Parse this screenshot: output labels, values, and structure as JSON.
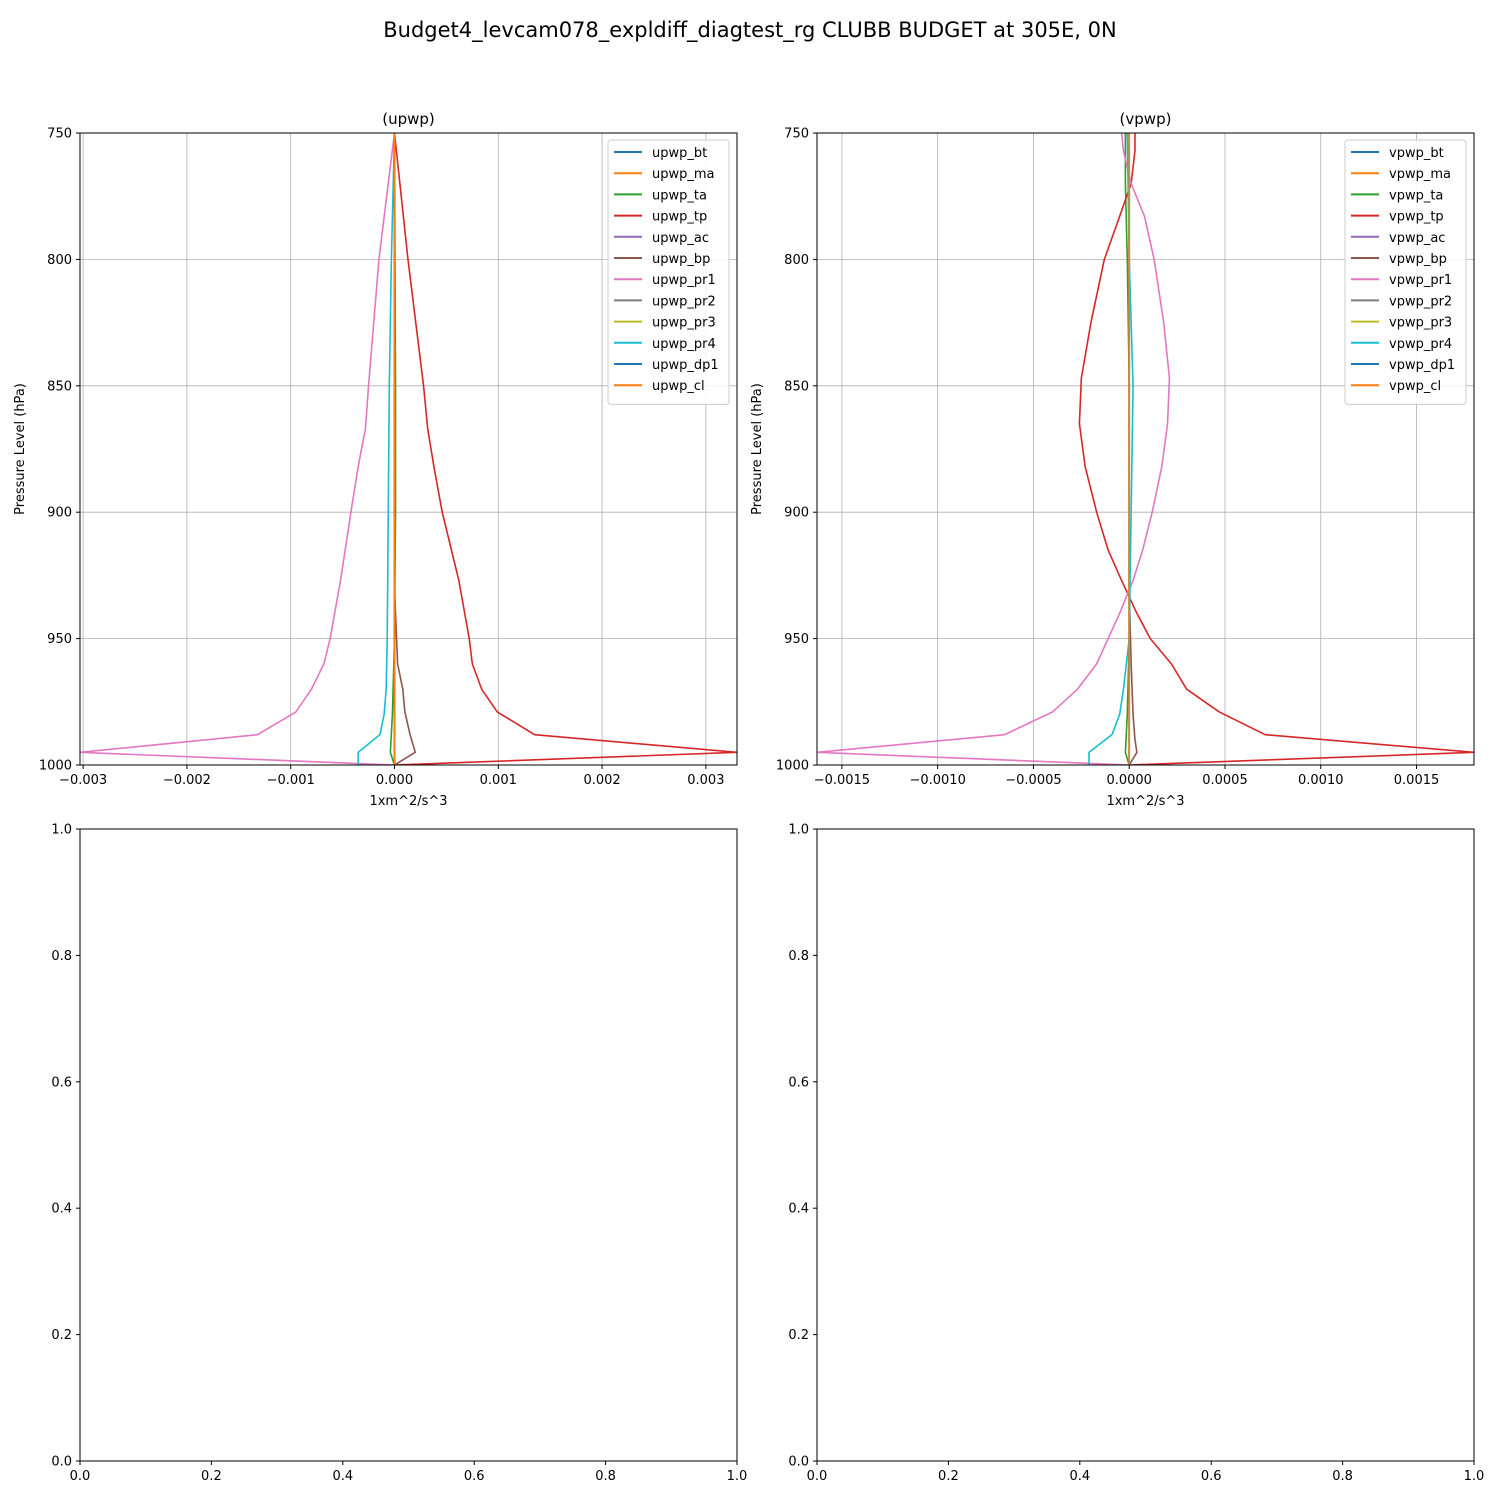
{
  "figure": {
    "suptitle": "Budget4_levcam078_expldiff_diagtest_rg CLUBB BUDGET at 305E, 0N"
  },
  "colors": {
    "tab": [
      "#1f77b4",
      "#ff7f0e",
      "#2ca02c",
      "#d62728",
      "#9467bd",
      "#8c564b",
      "#e377c2",
      "#7f7f7f",
      "#bcbd22",
      "#17becf",
      "#1f77b4",
      "#ff7f0e"
    ]
  },
  "chart_data": [
    {
      "type": "line",
      "title": "(upwp)",
      "xlabel": "1xm^2/s^3",
      "ylabel": "Pressure Level (hPa)",
      "xlim": [
        -0.00303,
        0.0033
      ],
      "ylim": [
        1000,
        750
      ],
      "xticks": [
        -0.003,
        -0.002,
        -0.001,
        0.0,
        0.001,
        0.002,
        0.003
      ],
      "xtick_labels": [
        "−0.003",
        "−0.002",
        "−0.001",
        "0.000",
        "0.001",
        "0.002",
        "0.003"
      ],
      "yticks": [
        750,
        800,
        850,
        900,
        950,
        1000
      ],
      "ytick_labels": [
        "750",
        "800",
        "850",
        "900",
        "950",
        "1000"
      ],
      "grid": true,
      "legend_position": "top-right",
      "series": [
        {
          "name": "upwp_bt",
          "color": "#1f77b4",
          "points": [
            [
              0,
              750
            ],
            [
              0,
              1000
            ]
          ]
        },
        {
          "name": "upwp_ma",
          "color": "#ff7f0e",
          "points": [
            [
              0,
              750
            ],
            [
              0,
              1000
            ]
          ]
        },
        {
          "name": "upwp_ta",
          "color": "#2ca02c",
          "points": [
            [
              0,
              750
            ],
            [
              1e-05,
              850
            ],
            [
              1e-05,
              900
            ],
            [
              0,
              950
            ],
            [
              -2e-05,
              980
            ],
            [
              -4e-05,
              995
            ],
            [
              0,
              1000
            ]
          ]
        },
        {
          "name": "upwp_tp",
          "color": "#d62728",
          "points": [
            [
              0,
              750
            ],
            [
              0.00013,
              800
            ],
            [
              0.00028,
              850
            ],
            [
              0.00032,
              867
            ],
            [
              0.00038,
              882
            ],
            [
              0.00046,
              900
            ],
            [
              0.00062,
              927
            ],
            [
              0.00072,
              950
            ],
            [
              0.00075,
              960
            ],
            [
              0.00084,
              970
            ],
            [
              0.00099,
              979
            ],
            [
              0.00135,
              988
            ],
            [
              0.0033,
              995
            ],
            [
              0,
              1000
            ]
          ]
        },
        {
          "name": "upwp_ac",
          "color": "#9467bd",
          "points": [
            [
              0,
              750
            ],
            [
              0,
              1000
            ]
          ]
        },
        {
          "name": "upwp_bp",
          "color": "#8c564b",
          "points": [
            [
              0,
              750
            ],
            [
              0,
              930
            ],
            [
              3e-05,
              960
            ],
            [
              8e-05,
              970
            ],
            [
              0.0001,
              979
            ],
            [
              0.00015,
              988
            ],
            [
              0.0002,
              995
            ],
            [
              0,
              1000
            ]
          ]
        },
        {
          "name": "upwp_pr1",
          "color": "#e377c2",
          "points": [
            [
              0,
              750
            ],
            [
              -0.00015,
              800
            ],
            [
              -0.00025,
              850
            ],
            [
              -0.00028,
              867
            ],
            [
              -0.00035,
              882
            ],
            [
              -0.00042,
              900
            ],
            [
              -0.00052,
              927
            ],
            [
              -0.00062,
              950
            ],
            [
              -0.00068,
              960
            ],
            [
              -0.0008,
              970
            ],
            [
              -0.00095,
              979
            ],
            [
              -0.00132,
              988
            ],
            [
              -0.00303,
              995
            ],
            [
              0,
              1000
            ]
          ]
        },
        {
          "name": "upwp_pr2",
          "color": "#7f7f7f",
          "points": [
            [
              0,
              750
            ],
            [
              0,
              1000
            ]
          ]
        },
        {
          "name": "upwp_pr3",
          "color": "#bcbd22",
          "points": [
            [
              0,
              750
            ],
            [
              0,
              1000
            ]
          ]
        },
        {
          "name": "upwp_pr4",
          "color": "#17becf",
          "points": [
            [
              0,
              750
            ],
            [
              -3e-05,
              800
            ],
            [
              -5e-05,
              850
            ],
            [
              -6e-05,
              900
            ],
            [
              -7e-05,
              950
            ],
            [
              -8e-05,
              970
            ],
            [
              -0.0001,
              980
            ],
            [
              -0.00014,
              988
            ],
            [
              -0.00035,
              995
            ],
            [
              -0.00035,
              1000
            ]
          ]
        },
        {
          "name": "upwp_dp1",
          "color": "#1f77b4",
          "points": [
            [
              0,
              750
            ],
            [
              0,
              1000
            ]
          ]
        },
        {
          "name": "upwp_cl",
          "color": "#ff7f0e",
          "points": [
            [
              0,
              750
            ],
            [
              0,
              1000
            ]
          ]
        }
      ]
    },
    {
      "type": "line",
      "title": "(vpwp)",
      "xlabel": "1xm^2/s^3",
      "ylabel": "Pressure Level (hPa)",
      "xlim": [
        -0.00163,
        0.0018
      ],
      "ylim": [
        1000,
        750
      ],
      "xticks": [
        -0.0015,
        -0.001,
        -0.0005,
        0.0,
        0.0005,
        0.001,
        0.0015
      ],
      "xtick_labels": [
        "−0.0015",
        "−0.0010",
        "−0.0005",
        "0.0000",
        "0.0005",
        "0.0010",
        "0.0015"
      ],
      "yticks": [
        750,
        800,
        850,
        900,
        950,
        1000
      ],
      "ytick_labels": [
        "750",
        "800",
        "850",
        "900",
        "950",
        "1000"
      ],
      "grid": true,
      "legend_position": "top-right",
      "series": [
        {
          "name": "vpwp_bt",
          "color": "#1f77b4",
          "points": [
            [
              0,
              750
            ],
            [
              0,
              1000
            ]
          ]
        },
        {
          "name": "vpwp_ma",
          "color": "#ff7f0e",
          "points": [
            [
              0,
              750
            ],
            [
              0,
              1000
            ]
          ]
        },
        {
          "name": "vpwp_ta",
          "color": "#2ca02c",
          "points": [
            [
              -2e-05,
              750
            ],
            [
              -2e-05,
              770
            ],
            [
              -1e-05,
              800
            ],
            [
              0,
              850
            ],
            [
              0,
              950
            ],
            [
              -1e-05,
              980
            ],
            [
              -2e-05,
              995
            ],
            [
              0,
              1000
            ]
          ]
        },
        {
          "name": "vpwp_tp",
          "color": "#d62728",
          "points": [
            [
              3e-05,
              750
            ],
            [
              3e-05,
              757
            ],
            [
              1e-05,
              770
            ],
            [
              -5e-05,
              783
            ],
            [
              -0.00013,
              800
            ],
            [
              -0.0002,
              825
            ],
            [
              -0.00025,
              847
            ],
            [
              -0.00026,
              865
            ],
            [
              -0.00023,
              882
            ],
            [
              -0.00017,
              900
            ],
            [
              -0.00011,
              915
            ],
            [
              -4e-05,
              927
            ],
            [
              4e-05,
              940
            ],
            [
              0.00011,
              950
            ],
            [
              0.00022,
              960
            ],
            [
              0.0003,
              970
            ],
            [
              0.00047,
              979
            ],
            [
              0.00071,
              988
            ],
            [
              0.0018,
              995
            ],
            [
              0,
              1000
            ]
          ]
        },
        {
          "name": "vpwp_ac",
          "color": "#9467bd",
          "points": [
            [
              0,
              750
            ],
            [
              0,
              1000
            ]
          ]
        },
        {
          "name": "vpwp_bp",
          "color": "#8c564b",
          "points": [
            [
              0,
              750
            ],
            [
              0,
              930
            ],
            [
              1e-05,
              960
            ],
            [
              2e-05,
              980
            ],
            [
              3e-05,
              990
            ],
            [
              4e-05,
              995
            ],
            [
              0,
              1000
            ]
          ]
        },
        {
          "name": "vpwp_pr1",
          "color": "#e377c2",
          "points": [
            [
              -4e-05,
              750
            ],
            [
              -3e-05,
              757
            ],
            [
              1e-05,
              770
            ],
            [
              8e-05,
              783
            ],
            [
              0.00013,
              800
            ],
            [
              0.00018,
              825
            ],
            [
              0.00021,
              847
            ],
            [
              0.0002,
              865
            ],
            [
              0.00017,
              882
            ],
            [
              0.00012,
              900
            ],
            [
              7e-05,
              915
            ],
            [
              2e-05,
              927
            ],
            [
              -5e-05,
              940
            ],
            [
              -0.00011,
              950
            ],
            [
              -0.00017,
              960
            ],
            [
              -0.00027,
              970
            ],
            [
              -0.0004,
              979
            ],
            [
              -0.00065,
              988
            ],
            [
              -0.00163,
              995
            ],
            [
              0,
              1000
            ]
          ]
        },
        {
          "name": "vpwp_pr2",
          "color": "#7f7f7f",
          "points": [
            [
              0,
              750
            ],
            [
              0,
              1000
            ]
          ]
        },
        {
          "name": "vpwp_pr3",
          "color": "#bcbd22",
          "points": [
            [
              0,
              750
            ],
            [
              0,
              1000
            ]
          ]
        },
        {
          "name": "vpwp_pr4",
          "color": "#17becf",
          "points": [
            [
              -1e-05,
              750
            ],
            [
              0,
              800
            ],
            [
              2e-05,
              850
            ],
            [
              1e-05,
              900
            ],
            [
              0,
              950
            ],
            [
              -3e-05,
              970
            ],
            [
              -5e-05,
              980
            ],
            [
              -9e-05,
              988
            ],
            [
              -0.00021,
              995
            ],
            [
              -0.00021,
              1000
            ]
          ]
        },
        {
          "name": "vpwp_dp1",
          "color": "#1f77b4",
          "points": [
            [
              0,
              750
            ],
            [
              0,
              1000
            ]
          ]
        },
        {
          "name": "vpwp_cl",
          "color": "#ff7f0e",
          "points": [
            [
              0,
              750
            ],
            [
              0,
              1000
            ]
          ]
        }
      ]
    },
    {
      "type": "line",
      "title": "",
      "xlabel": "",
      "ylabel": "",
      "xlim": [
        0,
        1
      ],
      "ylim": [
        0,
        1
      ],
      "xticks": [
        0,
        0.2,
        0.4,
        0.6,
        0.8,
        1.0
      ],
      "xtick_labels": [
        "0.0",
        "0.2",
        "0.4",
        "0.6",
        "0.8",
        "1.0"
      ],
      "yticks": [
        0,
        0.2,
        0.4,
        0.6,
        0.8,
        1.0
      ],
      "ytick_labels": [
        "0.0",
        "0.2",
        "0.4",
        "0.6",
        "0.8",
        "1.0"
      ],
      "grid": false,
      "series": []
    },
    {
      "type": "line",
      "title": "",
      "xlabel": "",
      "ylabel": "",
      "xlim": [
        0,
        1
      ],
      "ylim": [
        0,
        1
      ],
      "xticks": [
        0,
        0.2,
        0.4,
        0.6,
        0.8,
        1.0
      ],
      "xtick_labels": [
        "0.0",
        "0.2",
        "0.4",
        "0.6",
        "0.8",
        "1.0"
      ],
      "yticks": [
        0,
        0.2,
        0.4,
        0.6,
        0.8,
        1.0
      ],
      "ytick_labels": [
        "0.0",
        "0.2",
        "0.4",
        "0.6",
        "0.8",
        "1.0"
      ],
      "grid": false,
      "series": []
    }
  ]
}
